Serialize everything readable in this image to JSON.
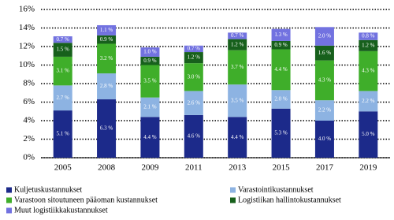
{
  "chart_data": {
    "type": "stacked_bar",
    "categories": [
      "2005",
      "2008",
      "2009",
      "2011",
      "2013",
      "2015",
      "2017",
      "2019"
    ],
    "series": [
      {
        "name": "Kuljetuskustannukset",
        "color": "#1c2a8a",
        "values": [
          5.1,
          6.3,
          4.4,
          4.6,
          4.4,
          5.3,
          4.0,
          5.0
        ],
        "value_labels": [
          "5.1 %",
          "6.3 %",
          "4.4 %",
          "4.6 %",
          "4.4 %",
          "5.3 %",
          "4.0 %",
          "5.0 %"
        ]
      },
      {
        "name": "Varastointikustannukset",
        "color": "#8db3e2",
        "values": [
          2.7,
          2.8,
          2.1,
          2.6,
          3.5,
          2.0,
          2.2,
          2.2
        ],
        "value_labels": [
          "2.7 %",
          "2.8 %",
          "2.1 %",
          "2.6 %",
          "3.5 %",
          "2.0 %",
          "2.2 %",
          "2.2 %"
        ]
      },
      {
        "name": "Varastoon sitoutuneen pääoman kustannukset",
        "color": "#3fae2a",
        "values": [
          3.1,
          3.2,
          3.5,
          3.0,
          3.7,
          4.4,
          4.3,
          4.3
        ],
        "value_labels": [
          "3.1 %",
          "3.2 %",
          "3.5 %",
          "3.0 %",
          "3.7 %",
          "4.4 %",
          "4.3 %",
          "4.3 %"
        ]
      },
      {
        "name": "Logistiikan hallintokustannukset",
        "color": "#17601c",
        "values": [
          1.5,
          0.9,
          0.9,
          1.2,
          1.2,
          0.9,
          1.6,
          1.2
        ],
        "value_labels": [
          "1.5 %",
          "0.9 %",
          "0.9 %",
          "1.2 %",
          "1.2 %",
          "0.9 %",
          "1.6 %",
          "1.2 %"
        ]
      },
      {
        "name": "Muut logistiikkakustannukset",
        "color": "#7272e0",
        "values": [
          0.7,
          1.1,
          1.0,
          0.7,
          0.7,
          1.3,
          2.0,
          0.8
        ],
        "value_labels": [
          "0.7 %",
          "1.1 %",
          "1.0 %",
          "0.7 %",
          "0.7 %",
          "1.3 %",
          "2.0 %",
          "0.8 %"
        ]
      }
    ],
    "ylim": [
      0,
      16
    ],
    "yticks": [
      {
        "value": 0,
        "label": "0%"
      },
      {
        "value": 2,
        "label": "2%"
      },
      {
        "value": 4,
        "label": "4%"
      },
      {
        "value": 6,
        "label": "6%"
      },
      {
        "value": 8,
        "label": "8%"
      },
      {
        "value": 10,
        "label": "10%"
      },
      {
        "value": 12,
        "label": "12%"
      },
      {
        "value": 14,
        "label": "14%"
      },
      {
        "value": 16,
        "label": "16%"
      }
    ],
    "grid": true
  }
}
